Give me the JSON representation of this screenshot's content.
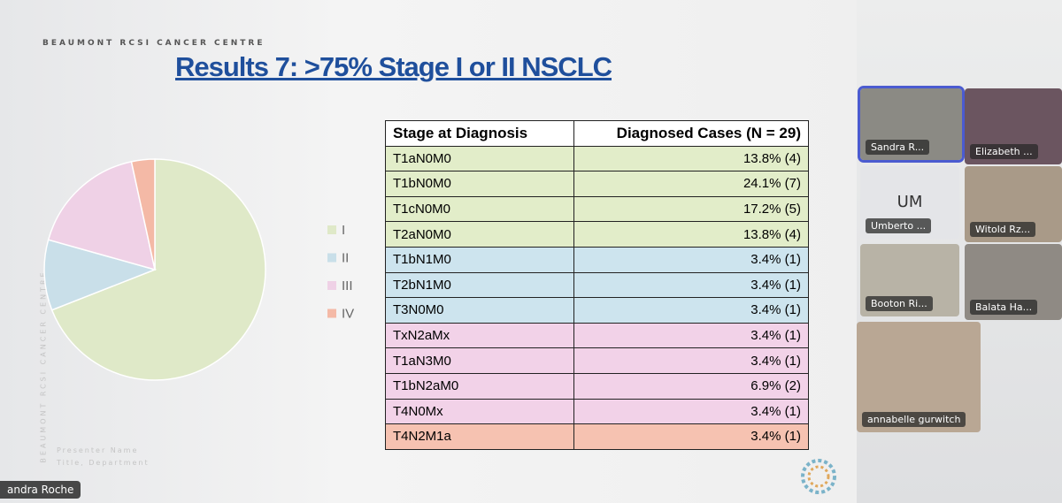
{
  "slide": {
    "org": "BEAUMONT RCSI CANCER CENTRE",
    "title": "Results 7: >75% Stage I or II NSCLC",
    "side_text": "BEAUMONT RCSI CANCER CENTRE",
    "footer": [
      "Presenter Name",
      "Title, Department"
    ]
  },
  "chart_data": {
    "type": "pie",
    "categories": [
      "I",
      "II",
      "III",
      "IV"
    ],
    "values": [
      68.9,
      10.3,
      17.2,
      3.4
    ],
    "colors": [
      "#dfe9c8",
      "#c9dfe9",
      "#efd1e6",
      "#f4b9a6"
    ],
    "legend": "right"
  },
  "table": {
    "header": [
      "Stage at Diagnosis",
      "Diagnosed Cases (N = 29)"
    ],
    "rows": [
      {
        "stage": "T1aN0M0",
        "cases": "13.8% (4)",
        "color": "#e2edc9"
      },
      {
        "stage": "T1bN0M0",
        "cases": "24.1% (7)",
        "color": "#e2edc9"
      },
      {
        "stage": "T1cN0M0",
        "cases": "17.2% (5)",
        "color": "#e2edc9"
      },
      {
        "stage": "T2aN0M0",
        "cases": "13.8% (4)",
        "color": "#e2edc9"
      },
      {
        "stage": "T1bN1M0",
        "cases": "3.4% (1)",
        "color": "#cde4ee"
      },
      {
        "stage": "T2bN1M0",
        "cases": "3.4% (1)",
        "color": "#cde4ee"
      },
      {
        "stage": "T3N0M0",
        "cases": "3.4% (1)",
        "color": "#cde4ee"
      },
      {
        "stage": "TxN2aMx",
        "cases": "3.4% (1)",
        "color": "#f2d2e8"
      },
      {
        "stage": "T1aN3M0",
        "cases": "3.4% (1)",
        "color": "#f2d2e8"
      },
      {
        "stage": "T1bN2aM0",
        "cases": "6.9% (2)",
        "color": "#f2d2e8"
      },
      {
        "stage": "T4N0Mx",
        "cases": "3.4% (1)",
        "color": "#f2d2e8"
      },
      {
        "stage": "T4N2M1a",
        "cases": "3.4% (1)",
        "color": "#f6c2b1"
      }
    ]
  },
  "presenter": "andra Roche",
  "participants": [
    {
      "name": "Sandra R...",
      "color": "#8b8a84"
    },
    {
      "name": "Elizabeth ...",
      "color": "#6b5560"
    },
    {
      "name": "Umberto ...",
      "initials": "UM",
      "color": "#e4e5e8"
    },
    {
      "name": "Witold Rz...",
      "color": "#a99a88"
    },
    {
      "name": "Booton Ri...",
      "color": "#b8b3a6"
    },
    {
      "name": "Balata Ha...",
      "color": "#8f8a84"
    },
    {
      "name": "annabelle gurwitch",
      "color": "#b9a794"
    }
  ]
}
